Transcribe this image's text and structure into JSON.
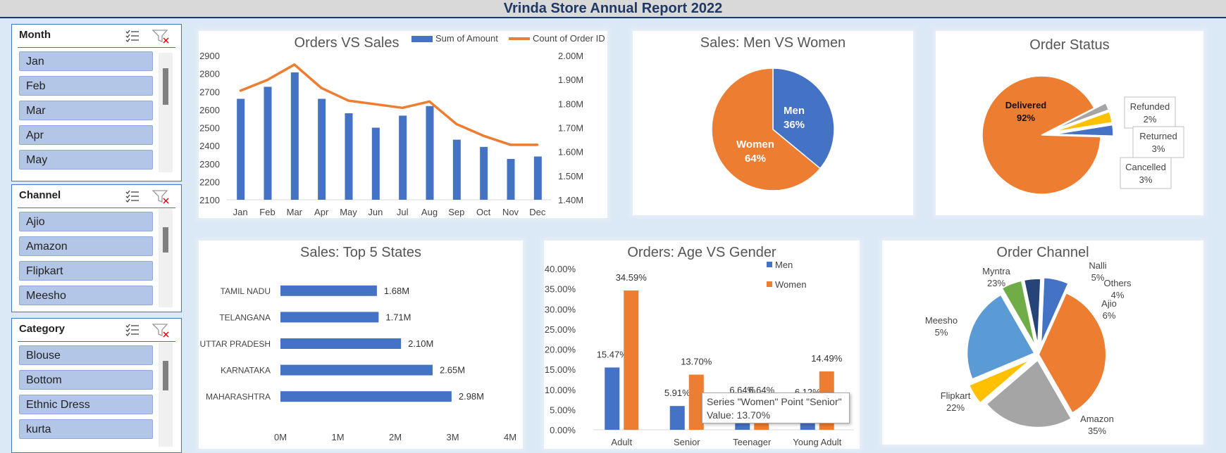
{
  "report_title": "Vrinda Store Annual Report 2022",
  "slicers": {
    "month": {
      "title": "Month",
      "items": [
        "Jan",
        "Feb",
        "Mar",
        "Apr",
        "May"
      ]
    },
    "channel": {
      "title": "Channel",
      "items": [
        "Ajio",
        "Amazon",
        "Flipkart",
        "Meesho"
      ]
    },
    "category": {
      "title": "Category",
      "items": [
        "Blouse",
        "Bottom",
        "Ethnic Dress",
        "kurta"
      ]
    }
  },
  "tooltip": {
    "line1": "Series \"Women\" Point \"Senior\"",
    "line2": "Value: 13.70%"
  },
  "chart_data": [
    {
      "id": "orders_vs_sales",
      "type": "bar+line",
      "title": "Orders VS Sales",
      "categories": [
        "Jan",
        "Feb",
        "Mar",
        "Apr",
        "May",
        "Jun",
        "Jul",
        "Aug",
        "Sep",
        "Oct",
        "Nov",
        "Dec"
      ],
      "series": [
        {
          "name": "Sum of Amount",
          "type": "bar",
          "axis": "right",
          "color": "#4472c4",
          "values": [
            1.82,
            1.87,
            1.93,
            1.82,
            1.76,
            1.7,
            1.75,
            1.79,
            1.65,
            1.62,
            1.57,
            1.58
          ]
        },
        {
          "name": "Count of Order ID",
          "type": "line",
          "axis": "left",
          "color": "#ed7d31",
          "values": [
            2705,
            2765,
            2850,
            2720,
            2650,
            2630,
            2610,
            2645,
            2520,
            2455,
            2405,
            2405
          ]
        }
      ],
      "left_axis": {
        "ylim": [
          2100,
          2900
        ],
        "ticks": [
          "2900",
          "2800",
          "2700",
          "2600",
          "2500",
          "2400",
          "2300",
          "2200",
          "2100"
        ]
      },
      "right_axis": {
        "ylim": [
          1.4,
          2.0
        ],
        "ticks": [
          "2.00M",
          "1.90M",
          "1.80M",
          "1.70M",
          "1.60M",
          "1.50M",
          "1.40M"
        ]
      },
      "legend": "top-right"
    },
    {
      "id": "men_vs_women",
      "type": "pie",
      "title": "Sales: Men VS Women",
      "slices": [
        {
          "label": "Men",
          "value": 36,
          "pct": "36%",
          "color": "#4472c4"
        },
        {
          "label": "Women",
          "value": 64,
          "pct": "64%",
          "color": "#ed7d31"
        }
      ]
    },
    {
      "id": "order_status",
      "type": "pie",
      "title": "Order Status",
      "slices": [
        {
          "label": "Delivered",
          "value": 92,
          "pct": "92%",
          "color": "#ed7d31"
        },
        {
          "label": "Refunded",
          "value": 2,
          "pct": "2%",
          "color": "#a5a5a5"
        },
        {
          "label": "Returned",
          "value": 3,
          "pct": "3%",
          "color": "#ffc000"
        },
        {
          "label": "Cancelled",
          "value": 3,
          "pct": "3%",
          "color": "#4472c4"
        }
      ]
    },
    {
      "id": "top5_states",
      "type": "bar",
      "orientation": "horizontal",
      "title": "Sales: Top 5 States",
      "categories": [
        "TAMIL NADU",
        "TELANGANA",
        "UTTAR PRADESH",
        "KARNATAKA",
        "MAHARASHTRA"
      ],
      "values": [
        1.68,
        1.71,
        2.1,
        2.65,
        2.98
      ],
      "value_labels": [
        "1.68M",
        "1.71M",
        "2.10M",
        "2.65M",
        "2.98M"
      ],
      "xlim": [
        0,
        4
      ],
      "xticks": [
        "0M",
        "1M",
        "2M",
        "3M",
        "4M"
      ],
      "color": "#4472c4"
    },
    {
      "id": "age_vs_gender",
      "type": "bar",
      "title": "Orders: Age VS Gender",
      "categories": [
        "Adult",
        "Senior",
        "Teenager",
        "Young Adult"
      ],
      "series": [
        {
          "name": "Men",
          "color": "#4472c4",
          "values": [
            15.47,
            5.91,
            6.64,
            6.12
          ],
          "labels": [
            "15.47%",
            "5.91%",
            "6.64%",
            "6.12%"
          ]
        },
        {
          "name": "Women",
          "color": "#ed7d31",
          "values": [
            34.59,
            13.7,
            6.64,
            14.49
          ],
          "labels": [
            "34.59%",
            "13.70%",
            "6.64%",
            "14.49%"
          ]
        }
      ],
      "ylim": [
        0,
        40
      ],
      "yticks": [
        "40.00%",
        "35.00%",
        "30.00%",
        "25.00%",
        "20.00%",
        "15.00%",
        "10.00%",
        "5.00%",
        "0.00%"
      ],
      "legend": "top-right"
    },
    {
      "id": "order_channel",
      "type": "pie",
      "title": "Order Channel",
      "slices": [
        {
          "label": "Amazon",
          "value": 35,
          "pct": "35%",
          "color": "#ed7d31"
        },
        {
          "label": "Flipkart",
          "value": 22,
          "pct": "22%",
          "color": "#a5a5a5"
        },
        {
          "label": "Meesho",
          "value": 5,
          "pct": "5%",
          "color": "#ffc000"
        },
        {
          "label": "Myntra",
          "value": 23,
          "pct": "23%",
          "color": "#5b9bd5"
        },
        {
          "label": "Nalli",
          "value": 5,
          "pct": "5%",
          "color": "#70ad47"
        },
        {
          "label": "Others",
          "value": 4,
          "pct": "4%",
          "color": "#264478"
        },
        {
          "label": "Ajio",
          "value": 6,
          "pct": "6%",
          "color": "#4472c4"
        }
      ]
    }
  ]
}
